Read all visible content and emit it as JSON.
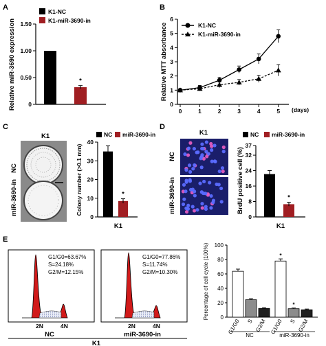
{
  "panels": {
    "a": {
      "letter": "A"
    },
    "b": {
      "letter": "B"
    },
    "c": {
      "letter": "C",
      "cell_line": "K1",
      "row_labels": [
        "NC",
        "miR-3690-in"
      ]
    },
    "d": {
      "letter": "D",
      "cell_line": "K1",
      "row_labels": [
        "NC",
        "miR-3690-in"
      ]
    },
    "e": {
      "letter": "E",
      "cell_line": "K1"
    }
  },
  "flow": {
    "panels": [
      {
        "group": "NC",
        "g1": "G1/G0=63.67%",
        "s": "S=24.18%",
        "g2m": "G2/M=12.15%",
        "peak_labels": [
          "2N",
          "4N"
        ]
      },
      {
        "group": "miR-3690-in",
        "g1": "G1/G0=77.86%",
        "s": "S=11.74%",
        "g2m": "G2/M=10.30%",
        "peak_labels": [
          "2N",
          "4N"
        ]
      }
    ]
  },
  "chart_data": [
    {
      "panel": "A",
      "type": "bar",
      "categories": [
        "K1-NC",
        "K1-miR-3690-in"
      ],
      "values": [
        1.0,
        0.32
      ],
      "errors": [
        0,
        0.03
      ],
      "colors": [
        "#000000",
        "#a01e22"
      ],
      "ylabel": "Relative miR-3690 expression",
      "ylim": [
        0,
        1.5
      ],
      "yticks": [
        "0",
        "0.50",
        "1.00",
        "1.50"
      ],
      "legend": [
        "K1-NC",
        "K1-miR-3690-in"
      ],
      "legend_position": "top-left",
      "significance": [
        "",
        "*"
      ]
    },
    {
      "panel": "B",
      "type": "line",
      "x": [
        0,
        1,
        2,
        3,
        4,
        5
      ],
      "series": [
        {
          "name": "K1-NC",
          "marker": "circle",
          "values": [
            1.0,
            1.18,
            1.7,
            2.45,
            3.2,
            4.8
          ],
          "errors": [
            0.1,
            0.15,
            0.2,
            0.25,
            0.35,
            0.45
          ]
        },
        {
          "name": "K1-miR-3690-in",
          "marker": "triangle",
          "values": [
            1.0,
            1.1,
            1.38,
            1.55,
            1.8,
            2.4
          ],
          "errors": [
            0.1,
            0.15,
            0.2,
            0.2,
            0.25,
            0.4
          ]
        }
      ],
      "xlabel": "(days)",
      "ylabel": "Relative MTT absorbance",
      "ylim": [
        0,
        6
      ],
      "xticks": [
        "0",
        "1",
        "2",
        "3",
        "4",
        "5"
      ],
      "yticks": [
        "0",
        "1",
        "2",
        "3",
        "4",
        "5",
        "6"
      ],
      "legend_position": "top-left"
    },
    {
      "panel": "C",
      "type": "bar",
      "categories": [
        "NC",
        "miR-3690-in"
      ],
      "values": [
        35,
        8.5
      ],
      "errors": [
        3,
        1.2
      ],
      "colors": [
        "#000000",
        "#a01e22"
      ],
      "ylabel": "Colony number (>0.1 mm)",
      "xlabel": "K1",
      "ylim": [
        0,
        40
      ],
      "yticks": [
        "0",
        "10",
        "20",
        "30",
        "40"
      ],
      "legend": [
        "NC",
        "miR-3690-in"
      ],
      "legend_position": "top",
      "significance": [
        "",
        "*"
      ]
    },
    {
      "panel": "D",
      "type": "bar",
      "categories": [
        "NC",
        "miR-3690-in"
      ],
      "values": [
        22.2,
        6.6
      ],
      "errors": [
        1.8,
        1.0
      ],
      "colors": [
        "#000000",
        "#a01e22"
      ],
      "ylabel": "BrdU positive cell (%)",
      "xlabel": "K1",
      "ylim": [
        0,
        37
      ],
      "yticks": [
        "0",
        "8",
        "16",
        "24",
        "32"
      ],
      "extra_ytick": "37",
      "legend": [
        "NC",
        "miR-3690-in"
      ],
      "legend_position": "top",
      "significance": [
        "",
        "*"
      ]
    },
    {
      "panel": "E",
      "type": "bar",
      "groups": [
        "NC",
        "miR-3690-in"
      ],
      "categories": [
        "G1/G0",
        "S",
        "G2/M"
      ],
      "series": [
        {
          "group": "NC",
          "values": [
            63.67,
            24.18,
            12.15
          ],
          "errors": [
            3,
            1.5,
            1
          ]
        },
        {
          "group": "miR-3690-in",
          "values": [
            77.86,
            11.74,
            10.3
          ],
          "errors": [
            3,
            1,
            1
          ]
        }
      ],
      "colors": [
        "#ffffff",
        "#8c8c8c",
        "#1f1f1f"
      ],
      "ylabel": "Percentage of cell cycle (100%)",
      "ylim": [
        0,
        100
      ],
      "yticks": [
        "0",
        "20",
        "40",
        "60",
        "80",
        "100"
      ],
      "significance": [
        [
          "",
          "",
          ""
        ],
        [
          "*",
          "*",
          ""
        ]
      ]
    }
  ]
}
